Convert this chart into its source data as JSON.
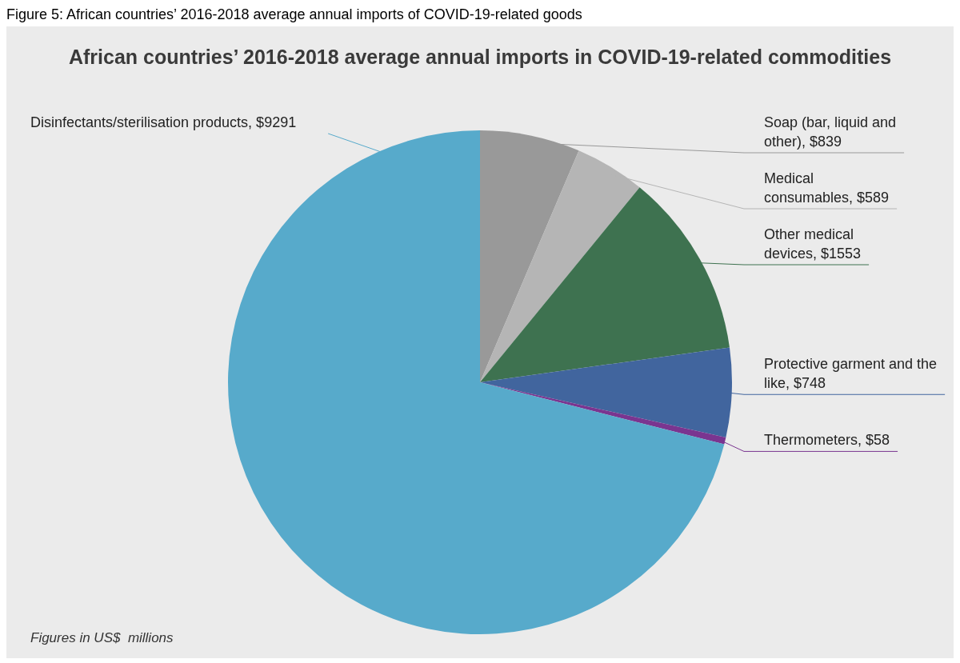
{
  "chart_data": {
    "type": "pie",
    "title": "African countries’ 2016-2018 average annual imports in COVID-19-related commodities",
    "categories": [
      "Soap (bar, liquid and other)",
      "Medical consumables",
      "Other medical devices",
      "Protective garment and the like",
      "Thermometers",
      "Disinfectants/sterilisation products"
    ],
    "values": [
      839,
      589,
      1553,
      748,
      58,
      9291
    ],
    "value_labels": [
      "$839",
      "$589",
      "$1553",
      "$748",
      "$58",
      "$9291"
    ],
    "colors": [
      "#999999",
      "#b5b5b5",
      "#3e7250",
      "#41659e",
      "#7a3590",
      "#57aacb"
    ],
    "annotations": [
      "Figure 5: African countries’ 2016-2018 average annual imports of COVID-19-related goods",
      "Figures in US$  millions"
    ],
    "legend": false
  }
}
